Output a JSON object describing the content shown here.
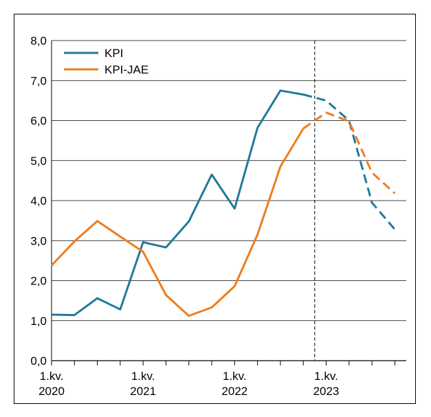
{
  "chart_data": {
    "type": "line",
    "title": "",
    "xlabel": "",
    "ylabel": "",
    "ylim": [
      0,
      8
    ],
    "yticks": [
      "0,0",
      "1,0",
      "2,0",
      "3,0",
      "4,0",
      "5,0",
      "6,0",
      "7,0",
      "8,0"
    ],
    "x_quarters": [
      "1.kv. 2020",
      "2.kv. 2020",
      "3.kv. 2020",
      "4.kv. 2020",
      "1.kv. 2021",
      "2.kv. 2021",
      "3.kv. 2021",
      "4.kv. 2021",
      "1.kv. 2022",
      "2.kv. 2022",
      "3.kv. 2022",
      "4.kv. 2022",
      "1.kv. 2023",
      "2.kv. 2023",
      "3.kv. 2023",
      "4.kv. 2023"
    ],
    "xtick_labels": [
      {
        "quarter_index": 0,
        "line1": "1.kv.",
        "line2": "2020"
      },
      {
        "quarter_index": 4,
        "line1": "1.kv.",
        "line2": "2021"
      },
      {
        "quarter_index": 8,
        "line1": "1.kv.",
        "line2": "2022"
      },
      {
        "quarter_index": 12,
        "line1": "1.kv.",
        "line2": "2023"
      }
    ],
    "forecast_start_index": 11.5,
    "grid": true,
    "legend_position": "top-left",
    "series": [
      {
        "name": "KPI",
        "color": "#1f7a9c",
        "values": [
          1.15,
          1.14,
          1.56,
          1.28,
          2.96,
          2.83,
          3.48,
          4.65,
          3.8,
          5.82,
          6.75,
          6.65,
          6.5,
          6.0,
          3.95,
          3.28
        ],
        "forecast_from_index": 11
      },
      {
        "name": "KPI-JAE",
        "color": "#ef7c1c",
        "values": [
          2.38,
          2.98,
          3.49,
          3.1,
          2.72,
          1.64,
          1.12,
          1.33,
          1.86,
          3.15,
          4.85,
          5.8,
          6.2,
          5.98,
          4.7,
          4.18
        ],
        "forecast_from_index": 11
      }
    ]
  }
}
